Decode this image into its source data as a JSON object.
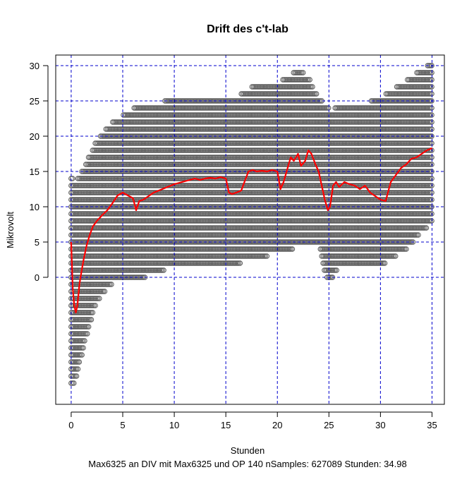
{
  "chart_data": {
    "type": "scatter",
    "title": "Drift des c't-lab",
    "xlabel": "Stunden",
    "ylabel": "Mikrovolt",
    "subtitle": "Max6325 an DIV mit Max6325 und OP 140  nSamples:  627089 Stunden:  34.98",
    "xlim": [
      -1.5,
      36.2
    ],
    "ylim": [
      -18,
      31.5
    ],
    "x_ticks": [
      0,
      5,
      10,
      15,
      20,
      25,
      30,
      35
    ],
    "y_ticks": [
      0,
      5,
      10,
      15,
      20,
      25,
      30
    ],
    "grid": true,
    "grid_color": "#0000cc",
    "point_color": "#555555",
    "line_color": "#ff0000",
    "point_band": {
      "x": [
        0,
        0.3,
        0.8,
        1.5,
        2.5,
        3.5,
        4.5,
        5.5,
        6.5,
        8,
        10,
        12,
        14,
        15,
        16,
        17,
        18,
        20,
        21,
        22,
        23,
        24,
        24.8,
        25.2,
        26,
        28,
        30,
        31,
        32,
        33,
        34,
        35
      ],
      "y_max": [
        14,
        13,
        14,
        16,
        19,
        21,
        22,
        23,
        24,
        24,
        25,
        25,
        25,
        25,
        25,
        26,
        27,
        27,
        28,
        29,
        28,
        25,
        24,
        23,
        24,
        24,
        25,
        26,
        27,
        28,
        29,
        30
      ],
      "y_min": [
        -15,
        -15,
        -12,
        -8,
        -3,
        -1,
        0,
        0,
        0,
        1,
        2,
        2,
        2,
        2,
        2,
        3,
        3,
        4,
        4,
        5,
        5,
        5,
        0,
        0,
        2,
        2,
        2,
        3,
        4,
        5,
        7,
        8
      ]
    },
    "series": [
      {
        "type": "line",
        "x": [
          0,
          0.15,
          0.3,
          0.45,
          0.6,
          0.8,
          1.0,
          1.2,
          1.5,
          1.8,
          2.1,
          2.5,
          3.0,
          3.5,
          4.0,
          4.5,
          5.0,
          5.5,
          6.0,
          6.3,
          6.6,
          7.0,
          7.5,
          8.0,
          8.5,
          9.0,
          9.5,
          10.0,
          10.5,
          11.0,
          11.5,
          12.0,
          12.5,
          13.0,
          13.5,
          14.0,
          14.5,
          15.0,
          15.3,
          15.6,
          16.0,
          16.5,
          16.8,
          17.2,
          17.6,
          18.0,
          18.5,
          19.0,
          19.5,
          20.0,
          20.3,
          20.6,
          21.0,
          21.3,
          21.6,
          22.0,
          22.3,
          22.7,
          23.0,
          23.3,
          23.7,
          24.0,
          24.3,
          24.6,
          24.9,
          25.1,
          25.4,
          25.7,
          26.0,
          26.5,
          27.0,
          27.5,
          28.0,
          28.5,
          29.0,
          29.5,
          30.0,
          30.5,
          31.0,
          31.5,
          32.0,
          32.5,
          33.0,
          33.5,
          34.0,
          34.5,
          35.0
        ],
        "y": [
          5.0,
          -1.5,
          -4.0,
          -5.0,
          -4.0,
          -1.0,
          0.8,
          2.5,
          4.5,
          6.0,
          7.2,
          8.0,
          8.8,
          9.5,
          10.5,
          11.6,
          12.0,
          11.6,
          11.2,
          9.5,
          10.8,
          11.0,
          11.5,
          12.0,
          12.3,
          12.6,
          12.9,
          13.2,
          13.4,
          13.6,
          13.8,
          14.0,
          13.8,
          14.0,
          14.1,
          14.0,
          14.2,
          14.0,
          12.0,
          11.8,
          12.0,
          12.3,
          13.5,
          15.0,
          15.2,
          15.0,
          15.1,
          15.0,
          15.2,
          15.0,
          12.5,
          13.5,
          15.5,
          17.0,
          16.5,
          17.5,
          15.8,
          16.5,
          18.0,
          17.5,
          16.0,
          15.0,
          13.0,
          11.0,
          9.5,
          10.0,
          13.0,
          13.5,
          12.8,
          13.5,
          13.2,
          13.0,
          12.5,
          13.0,
          12.0,
          11.5,
          11.0,
          10.8,
          13.5,
          14.5,
          15.5,
          16.0,
          16.8,
          17.0,
          17.5,
          18.0,
          18.3
        ]
      }
    ]
  }
}
